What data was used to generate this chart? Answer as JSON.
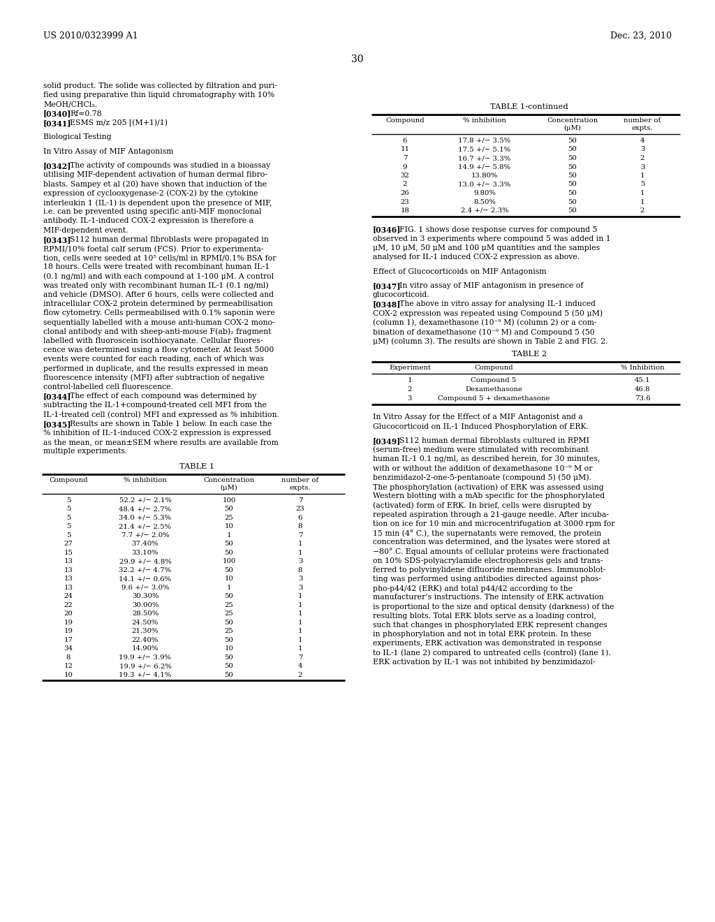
{
  "bg_color": "#ffffff",
  "header_left": "US 2010/0323999 A1",
  "header_right": "Dec. 23, 2010",
  "page_number": "30",
  "left_column": [
    {
      "type": "text",
      "text": "solid product. The solide was collected by filtration and puri-"
    },
    {
      "type": "text",
      "text": "fied using preparative thin liquid chromatography with 10%"
    },
    {
      "type": "text",
      "text": "MeOH/CHCl₃."
    },
    {
      "type": "para",
      "label": "[0340]",
      "rest": "   Rf=0.78"
    },
    {
      "type": "para",
      "label": "[0341]",
      "rest": "   ESMS m/z 205 [(M+1)/1)"
    },
    {
      "type": "blank"
    },
    {
      "type": "text",
      "text": "Biological Testing"
    },
    {
      "type": "blank"
    },
    {
      "type": "text",
      "text": "In Vitro Assay of MIF Antagonism"
    },
    {
      "type": "blank"
    },
    {
      "type": "para",
      "label": "[0342]",
      "rest": "   The activity of compounds was studied in a bioassay"
    },
    {
      "type": "text",
      "text": "utilising MIF-dependent activation of human dermal fibro-"
    },
    {
      "type": "text",
      "text": "blasts. Sampey et al (20) have shown that induction of the"
    },
    {
      "type": "text",
      "text": "expression of cyclooxygenase-2 (COX-2) by the cytokine"
    },
    {
      "type": "text",
      "text": "interleukin 1 (IL-1) is dependent upon the presence of MIF,"
    },
    {
      "type": "text",
      "text": "i.e. can be prevented using specific anti-MIF monoclonal"
    },
    {
      "type": "text",
      "text": "antibody. IL-1-induced COX-2 expression is therefore a"
    },
    {
      "type": "text",
      "text": "MIF-dependent event."
    },
    {
      "type": "para",
      "label": "[0343]",
      "rest": "   S112 human dermal fibroblasts were propagated in"
    },
    {
      "type": "text",
      "text": "RPMI/10% foetal calf serum (FCS). Prior to experimenta-"
    },
    {
      "type": "text",
      "text": "tion, cells were seeded at 10⁵ cells/ml in RPMI/0.1% BSA for"
    },
    {
      "type": "text",
      "text": "18 hours. Cells were treated with recombinant human IL-1"
    },
    {
      "type": "text",
      "text": "(0.1 ng/ml) and with each compound at 1-100 μM. A control"
    },
    {
      "type": "text",
      "text": "was treated only with recombinant human IL-1 (0.1 ng/ml)"
    },
    {
      "type": "text",
      "text": "and vehicle (DMSO). After 6 hours, cells were collected and"
    },
    {
      "type": "text",
      "text": "intracellular COX-2 protein determined by permeabilisation"
    },
    {
      "type": "text",
      "text": "flow cytometry. Cells permeabilised with 0.1% saponin were"
    },
    {
      "type": "text",
      "text": "sequentially labelled with a mouse anti-human COX-2 mono-"
    },
    {
      "type": "text",
      "text": "clonal antibody and with sheep-anti-mouse F(ab)₂ fragment"
    },
    {
      "type": "text",
      "text": "labelled with fluoroscein isothiocyanate. Cellular fluores-"
    },
    {
      "type": "text",
      "text": "cence was determined using a flow cytometer. At least 5000"
    },
    {
      "type": "text",
      "text": "events were counted for each reading, each of which was"
    },
    {
      "type": "text",
      "text": "performed in duplicate, and the results expressed in mean"
    },
    {
      "type": "text",
      "text": "fluorescence intensity (MFI) after subtraction of negative"
    },
    {
      "type": "text",
      "text": "control-labelled cell fluorescence."
    },
    {
      "type": "para",
      "label": "[0344]",
      "rest": "   The effect of each compound was determined by"
    },
    {
      "type": "text",
      "text": "subtracting the IL-1+compound-treated cell MFI from the"
    },
    {
      "type": "text",
      "text": "IL-1-treated cell (control) MFI and expressed as % inhibition."
    },
    {
      "type": "para",
      "label": "[0345]",
      "rest": "   Results are shown in Table 1 below. In each case the"
    },
    {
      "type": "text",
      "text": "% inhibition of IL-1-induced COX-2 expression is expressed"
    },
    {
      "type": "text",
      "text": "as the mean, or mean±SEM where results are available from"
    },
    {
      "type": "text",
      "text": "multiple experiments."
    }
  ],
  "table1_title": "TABLE 1",
  "table1_data": [
    [
      "5",
      "52.2 +/− 2.1%",
      "100",
      "7"
    ],
    [
      "5",
      "48.4 +/− 2.7%",
      "50",
      "23"
    ],
    [
      "5",
      "34.0 +/− 5.3%",
      "25",
      "6"
    ],
    [
      "5",
      "21.4 +/− 2.5%",
      "10",
      "8"
    ],
    [
      "5",
      "7.7 +/− 2.0%",
      "1",
      "7"
    ],
    [
      "27",
      "37.40%",
      "50",
      "1"
    ],
    [
      "15",
      "33.10%",
      "50",
      "1"
    ],
    [
      "13",
      "29.9 +/− 4.8%",
      "100",
      "3"
    ],
    [
      "13",
      "32.2 +/− 4.7%",
      "50",
      "8"
    ],
    [
      "13",
      "14.1 +/− 0.6%",
      "10",
      "3"
    ],
    [
      "13",
      "9.6 +/− 3.0%",
      "1",
      "3"
    ],
    [
      "24",
      "30.30%",
      "50",
      "1"
    ],
    [
      "22",
      "30.00%",
      "25",
      "1"
    ],
    [
      "20",
      "28.50%",
      "25",
      "1"
    ],
    [
      "19",
      "24.50%",
      "50",
      "1"
    ],
    [
      "19",
      "21.30%",
      "25",
      "1"
    ],
    [
      "17",
      "22.40%",
      "50",
      "1"
    ],
    [
      "34",
      "14.90%",
      "10",
      "1"
    ],
    [
      "8",
      "19.9 +/− 3.9%",
      "50",
      "7"
    ],
    [
      "12",
      "19.9 +/− 6.2%",
      "50",
      "4"
    ],
    [
      "10",
      "19.3 +/− 4.1%",
      "50",
      "2"
    ]
  ],
  "table1cont_title": "TABLE 1-continued",
  "table1cont_data": [
    [
      "6",
      "17.8 +/− 3.5%",
      "50",
      "4"
    ],
    [
      "11",
      "17.5 +/− 5.1%",
      "50",
      "3"
    ],
    [
      "7",
      "16.7 +/− 3.3%",
      "50",
      "2"
    ],
    [
      "9",
      "14.9 +/− 5.8%",
      "50",
      "3"
    ],
    [
      "32",
      "13.80%",
      "50",
      "1"
    ],
    [
      "2",
      "13.0 +/− 3.3%",
      "50",
      "5"
    ],
    [
      "26",
      "9.80%",
      "50",
      "1"
    ],
    [
      "23",
      "8.50%",
      "50",
      "1"
    ],
    [
      "18",
      "2.4 +/− 2.3%",
      "50",
      "2"
    ]
  ],
  "right_col_items": [
    {
      "type": "para",
      "label": "[0346]",
      "rest": "   FIG. 1 shows dose response curves for compound 5"
    },
    {
      "type": "text",
      "text": "observed in 3 experiments where compound 5 was added in 1"
    },
    {
      "type": "text",
      "text": "μM, 10 μM, 50 μM and 100 μM quantities and the samples"
    },
    {
      "type": "text",
      "text": "analysed for IL-1 induced COX-2 expression as above."
    },
    {
      "type": "blank"
    },
    {
      "type": "text",
      "text": "Effect of Glucocorticoids on MIF Antagonism"
    },
    {
      "type": "blank"
    },
    {
      "type": "para",
      "label": "[0347]",
      "rest": "   In vitro assay of MIF antagonism in presence of"
    },
    {
      "type": "text",
      "text": "glucocorticoid."
    },
    {
      "type": "para",
      "label": "[0348]",
      "rest": "   The above in vitro assay for analysing IL-1 induced"
    },
    {
      "type": "text",
      "text": "COX-2 expression was repeated using Compound 5 (50 μM)"
    },
    {
      "type": "text",
      "text": "(column 1), dexamethasone (10⁻⁹ M) (column 2) or a com-"
    },
    {
      "type": "text",
      "text": "bination of dexamethasone (10⁻⁹ M) and Compound 5 (50"
    },
    {
      "type": "text",
      "text": "μM) (column 3). The results are shown in Table 2 and FIG. 2."
    }
  ],
  "table2_title": "TABLE 2",
  "table2_data": [
    [
      "1",
      "Compound 5",
      "45.1"
    ],
    [
      "2",
      "Dexamethasone",
      "46.8"
    ],
    [
      "3",
      "Compound 5 + dexamethasone",
      "73.6"
    ]
  ],
  "right_col_bottom": [
    {
      "type": "text",
      "text": "In Vitro Assay for the Effect of a MIF Antagonist and a"
    },
    {
      "type": "text",
      "text": "Glucocorticoid on IL-1 Induced Phosphorylation of ERK."
    },
    {
      "type": "blank"
    },
    {
      "type": "para",
      "label": "[0349]",
      "rest": "   S112 human dermal fibroblasts cultured in RPMI"
    },
    {
      "type": "text",
      "text": "(serum-free) medium were stimulated with recombinant"
    },
    {
      "type": "text",
      "text": "human IL-1 0.1 ng/ml, as described herein, for 30 minutes,"
    },
    {
      "type": "text",
      "text": "with or without the addition of dexamethasone 10⁻⁹ M or"
    },
    {
      "type": "text",
      "text": "benzimidazol-2-one-5-pentanoate (compound 5) (50 μM)."
    },
    {
      "type": "text",
      "text": "The phosphorylation (activation) of ERK was assessed using"
    },
    {
      "type": "text",
      "text": "Western blotting with a mAb specific for the phosphorylated"
    },
    {
      "type": "text",
      "text": "(activated) form of ERK. In brief, cells were disrupted by"
    },
    {
      "type": "text",
      "text": "repeated aspiration through a 21-gauge needle. After incuba-"
    },
    {
      "type": "text",
      "text": "tion on ice for 10 min and microcentrifugation at 3000 rpm for"
    },
    {
      "type": "text",
      "text": "15 min (4° C.), the supernatants were removed, the protein"
    },
    {
      "type": "text",
      "text": "concentration was determined, and the lysates were stored at"
    },
    {
      "type": "text",
      "text": "−80° C. Equal amounts of cellular proteins were fractionated"
    },
    {
      "type": "text",
      "text": "on 10% SDS-polyacrylamide electrophoresis gels and trans-"
    },
    {
      "type": "text",
      "text": "ferred to polyvinylidene difluoride membranes. Immunoblot-"
    },
    {
      "type": "text",
      "text": "ting was performed using antibodies directed against phos-"
    },
    {
      "type": "text",
      "text": "pho-p44/42 (ERK) and total p44/42 according to the"
    },
    {
      "type": "text",
      "text": "manufacturer’s instructions. The intensity of ERK activation"
    },
    {
      "type": "text",
      "text": "is proportional to the size and optical density (darkness) of the"
    },
    {
      "type": "text",
      "text": "resulting blots. Total ERK blots serve as a loading control,"
    },
    {
      "type": "text",
      "text": "such that changes in phosphorylated ERK represent changes"
    },
    {
      "type": "text",
      "text": "in phosphorylation and not in total ERK protein. In these"
    },
    {
      "type": "text",
      "text": "experiments, ERK activation was demonstrated in response"
    },
    {
      "type": "text",
      "text": "to IL-1 (lane 2) compared to untreated cells (control) (lane 1)."
    },
    {
      "type": "text",
      "text": "ERK activation by IL-1 was not inhibited by benzimidazol-"
    }
  ]
}
